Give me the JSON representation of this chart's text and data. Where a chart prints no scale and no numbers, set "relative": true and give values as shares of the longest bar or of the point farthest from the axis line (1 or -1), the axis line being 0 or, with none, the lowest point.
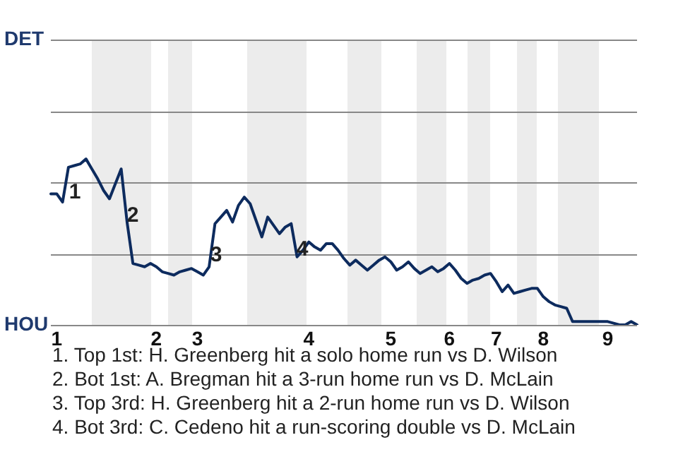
{
  "chart_data": {
    "type": "line",
    "relative": true,
    "categories": [
      null,
      "1",
      null,
      null,
      null,
      null,
      null,
      null,
      null,
      null,
      null,
      null,
      null,
      null,
      null,
      null,
      null,
      null,
      "2",
      null,
      null,
      null,
      null,
      null,
      null,
      "3",
      null,
      null,
      null,
      null,
      null,
      null,
      null,
      null,
      null,
      null,
      null,
      null,
      null,
      null,
      null,
      null,
      null,
      null,
      "4",
      null,
      null,
      null,
      null,
      null,
      null,
      null,
      null,
      null,
      null,
      null,
      null,
      null,
      "5",
      null,
      null,
      null,
      null,
      null,
      null,
      null,
      null,
      null,
      "6",
      null,
      null,
      null,
      null,
      null,
      null,
      null,
      "7",
      null,
      null,
      null,
      null,
      null,
      null,
      null,
      "8",
      null,
      null,
      null,
      null,
      null,
      null,
      null,
      null,
      null,
      null,
      "9",
      null,
      null,
      null,
      null,
      null
    ],
    "series": [
      {
        "color": "#0d2b5e",
        "values": [
          0.79,
          0.79,
          0.74,
          0.95,
          0.96,
          0.97,
          1,
          0.94,
          0.88,
          0.81,
          0.76,
          0.85,
          0.94,
          0.62,
          0.37,
          0.36,
          0.35,
          0.37,
          0.35,
          0.32,
          0.31,
          0.3,
          0.32,
          0.33,
          0.34,
          0.32,
          0.3,
          0.35,
          0.61,
          0.65,
          0.69,
          0.62,
          0.72,
          0.77,
          0.73,
          0.63,
          0.53,
          0.65,
          0.6,
          0.55,
          0.59,
          0.61,
          0.41,
          0.45,
          0.5,
          0.47,
          0.45,
          0.49,
          0.49,
          0.45,
          0.4,
          0.36,
          0.39,
          0.36,
          0.33,
          0.36,
          0.39,
          0.41,
          0.38,
          0.33,
          0.35,
          0.38,
          0.34,
          0.31,
          0.33,
          0.35,
          0.32,
          0.34,
          0.37,
          0.33,
          0.28,
          0.25,
          0.27,
          0.28,
          0.3,
          0.31,
          0.26,
          0.2,
          0.24,
          0.19,
          0.2,
          0.21,
          0.22,
          0.22,
          0.17,
          0.14,
          0.12,
          0.11,
          0.1,
          0.02,
          0.02,
          0.02,
          0.02,
          0.02,
          0.02,
          0.02,
          0.01,
          0,
          0,
          0.02,
          0
        ]
      }
    ],
    "legend": false,
    "marker": "none",
    "line_style": "solid",
    "ref_lines": [
      {
        "axis": "y",
        "value": 0.43,
        "color": "#888888"
      },
      {
        "axis": "y",
        "value": 0.86,
        "color": "#888888"
      },
      {
        "axis": "y",
        "value": 1.29,
        "color": "#888888"
      }
    ],
    "annotations": [
      "DET",
      "HOU",
      "1",
      "2",
      "3",
      "4",
      "1. Top 1st: H. Greenberg hit a solo home run vs D. Wilson",
      "2. Bot 1st: A. Bregman hit a 3-run home run vs D. McLain",
      "3. Top 3rd: H. Greenberg hit a 2-run home run vs D. Wilson",
      "4. Bot 3rd: C. Cedeno hit a run-scoring double vs D. McLain"
    ]
  }
}
